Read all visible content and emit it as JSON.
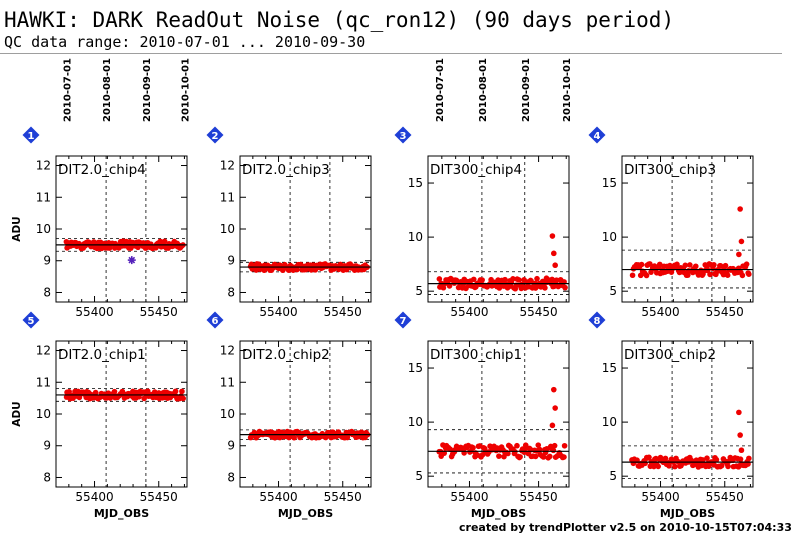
{
  "header": {
    "title": "HAWKI: DARK ReadOut Noise (qc_ron12) (90 days period)",
    "subtitle": "QC data range: 2010-07-01 ... 2010-09-30"
  },
  "footer": "created by trendPlotter v2.5 on 2010-10-15T07:04:33",
  "colors": {
    "data": "#ee0000",
    "outlier": "#5522bb",
    "badge": "#1f3fd6",
    "badge_text": "#ffffff"
  },
  "top_dates": [
    "2010-07-01",
    "2010-08-01",
    "2010-09-01",
    "2010-10-01"
  ],
  "chart_data": [
    {
      "type": "scatter",
      "panel": "1",
      "title": "DIT2.0_chip4",
      "xlabel": "",
      "ylabel": "ADU",
      "xlim": [
        55370,
        55472
      ],
      "ylim": [
        7.7,
        12.3
      ],
      "yticks": [
        8,
        9,
        10,
        11,
        12
      ],
      "xticks": [
        55400,
        55450
      ],
      "median": 9.5,
      "band": [
        9.3,
        9.7
      ],
      "date_ticks": [
        55378,
        55409,
        55440,
        55470
      ],
      "vlines": [
        55409,
        55440
      ],
      "series": [
        {
          "x_range": [
            55378,
            55469
          ],
          "base": 9.5,
          "spread": 0.12,
          "n": 120
        }
      ],
      "outliers": [
        {
          "x": 55429,
          "y": 9.02
        }
      ]
    },
    {
      "type": "scatter",
      "panel": "2",
      "title": "DIT2.0_chip3",
      "xlabel": "",
      "ylabel": "",
      "xlim": [
        55370,
        55472
      ],
      "ylim": [
        7.7,
        12.3
      ],
      "yticks": [
        8,
        9,
        10,
        11,
        12
      ],
      "xticks": [
        55400,
        55450
      ],
      "median": 8.8,
      "band": [
        8.65,
        8.95
      ],
      "date_ticks": [],
      "vlines": [
        55409,
        55440
      ],
      "series": [
        {
          "x_range": [
            55378,
            55469
          ],
          "base": 8.8,
          "spread": 0.1,
          "n": 120
        }
      ]
    },
    {
      "type": "scatter",
      "panel": "3",
      "title": "DIT300_chip4",
      "xlabel": "",
      "ylabel": "",
      "xlim": [
        55370,
        55472
      ],
      "ylim": [
        4,
        17.5
      ],
      "yticks": [
        5,
        10,
        15
      ],
      "xticks": [
        55400,
        55450
      ],
      "median": 5.7,
      "band": [
        4.7,
        6.8
      ],
      "date_ticks": [
        55378,
        55409,
        55440,
        55470
      ],
      "vlines": [
        55409,
        55440
      ],
      "series": [
        {
          "x_range": [
            55378,
            55469
          ],
          "base": 5.7,
          "spread": 0.5,
          "n": 110
        }
      ],
      "spikes": [
        {
          "x": 55460,
          "y": 10.1
        },
        {
          "x": 55461,
          "y": 8.5
        },
        {
          "x": 55462,
          "y": 7.4
        }
      ]
    },
    {
      "type": "scatter",
      "panel": "4",
      "title": "DIT300_chip3",
      "xlabel": "",
      "ylabel": "",
      "xlim": [
        55370,
        55472
      ],
      "ylim": [
        4,
        17.5
      ],
      "yticks": [
        5,
        10,
        15
      ],
      "xticks": [
        55400,
        55450
      ],
      "median": 7.0,
      "band": [
        5.3,
        8.8
      ],
      "date_ticks": [],
      "vlines": [
        55409,
        55440
      ],
      "series": [
        {
          "x_range": [
            55378,
            55469
          ],
          "base": 7.0,
          "spread": 0.55,
          "n": 100
        }
      ],
      "spikes": [
        {
          "x": 55462,
          "y": 12.6
        },
        {
          "x": 55463,
          "y": 9.6
        },
        {
          "x": 55461,
          "y": 8.4
        }
      ]
    },
    {
      "type": "scatter",
      "panel": "5",
      "title": "DIT2.0_chip1",
      "xlabel": "MJD_OBS",
      "ylabel": "ADU",
      "xlim": [
        55370,
        55472
      ],
      "ylim": [
        7.7,
        12.3
      ],
      "yticks": [
        8,
        9,
        10,
        11,
        12
      ],
      "xticks": [
        55400,
        55450
      ],
      "median": 10.6,
      "band": [
        10.4,
        10.8
      ],
      "date_ticks": [],
      "vlines": [
        55409,
        55440
      ],
      "series": [
        {
          "x_range": [
            55378,
            55469
          ],
          "base": 10.6,
          "spread": 0.12,
          "n": 120
        }
      ]
    },
    {
      "type": "scatter",
      "panel": "6",
      "title": "DIT2.0_chip2",
      "xlabel": "MJD_OBS",
      "ylabel": "",
      "xlim": [
        55370,
        55472
      ],
      "ylim": [
        7.7,
        12.3
      ],
      "yticks": [
        8,
        9,
        10,
        11,
        12
      ],
      "xticks": [
        55400,
        55450
      ],
      "median": 9.35,
      "band": [
        9.2,
        9.5
      ],
      "date_ticks": [],
      "vlines": [
        55409,
        55440
      ],
      "series": [
        {
          "x_range": [
            55378,
            55469
          ],
          "base": 9.35,
          "spread": 0.1,
          "n": 120
        }
      ]
    },
    {
      "type": "scatter",
      "panel": "7",
      "title": "DIT300_chip1",
      "xlabel": "MJD_OBS",
      "ylabel": "",
      "xlim": [
        55370,
        55472
      ],
      "ylim": [
        4,
        17.5
      ],
      "yticks": [
        5,
        10,
        15
      ],
      "xticks": [
        55400,
        55450
      ],
      "median": 7.3,
      "band": [
        5.3,
        9.3
      ],
      "date_ticks": [],
      "vlines": [
        55409,
        55440
      ],
      "series": [
        {
          "x_range": [
            55378,
            55469
          ],
          "base": 7.3,
          "spread": 0.6,
          "n": 100
        }
      ],
      "spikes": [
        {
          "x": 55461,
          "y": 13.0
        },
        {
          "x": 55462,
          "y": 11.3
        },
        {
          "x": 55460,
          "y": 9.7
        }
      ]
    },
    {
      "type": "scatter",
      "panel": "8",
      "title": "DIT300_chip2",
      "xlabel": "MJD_OBS",
      "ylabel": "",
      "xlim": [
        55370,
        55472
      ],
      "ylim": [
        4,
        17.5
      ],
      "yticks": [
        5,
        10,
        15
      ],
      "xticks": [
        55400,
        55450
      ],
      "median": 6.3,
      "band": [
        4.8,
        7.8
      ],
      "date_ticks": [],
      "vlines": [
        55409,
        55440
      ],
      "series": [
        {
          "x_range": [
            55378,
            55469
          ],
          "base": 6.3,
          "spread": 0.45,
          "n": 100
        }
      ],
      "spikes": [
        {
          "x": 55461,
          "y": 10.9
        },
        {
          "x": 55462,
          "y": 8.8
        },
        {
          "x": 55463,
          "y": 7.4
        }
      ]
    }
  ]
}
